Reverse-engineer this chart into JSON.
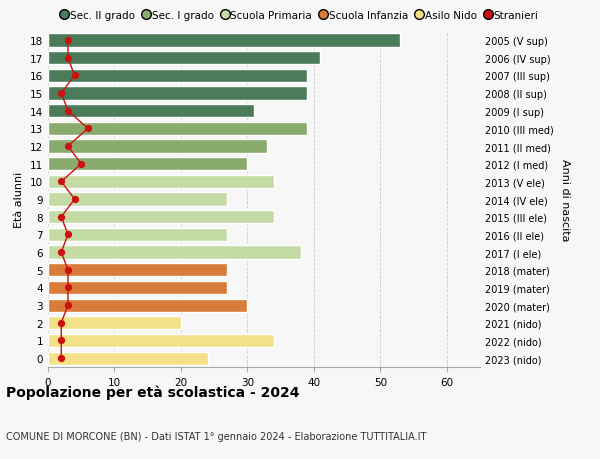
{
  "ages": [
    18,
    17,
    16,
    15,
    14,
    13,
    12,
    11,
    10,
    9,
    8,
    7,
    6,
    5,
    4,
    3,
    2,
    1,
    0
  ],
  "years": [
    "2005 (V sup)",
    "2006 (IV sup)",
    "2007 (III sup)",
    "2008 (II sup)",
    "2009 (I sup)",
    "2010 (III med)",
    "2011 (II med)",
    "2012 (I med)",
    "2013 (V ele)",
    "2014 (IV ele)",
    "2015 (III ele)",
    "2016 (II ele)",
    "2017 (I ele)",
    "2018 (mater)",
    "2019 (mater)",
    "2020 (mater)",
    "2021 (nido)",
    "2022 (nido)",
    "2023 (nido)"
  ],
  "values": [
    53,
    41,
    39,
    39,
    31,
    39,
    33,
    30,
    34,
    27,
    34,
    27,
    38,
    27,
    27,
    30,
    20,
    34,
    24
  ],
  "stranieri": [
    3,
    3,
    4,
    2,
    3,
    6,
    3,
    5,
    2,
    4,
    2,
    3,
    2,
    3,
    3,
    3,
    2,
    2,
    2
  ],
  "bar_colors": [
    "#4a7c59",
    "#4a7c59",
    "#4a7c59",
    "#4a7c59",
    "#4a7c59",
    "#8aab6e",
    "#8aab6e",
    "#8aab6e",
    "#c5dba5",
    "#c5dba5",
    "#c5dba5",
    "#c5dba5",
    "#c5dba5",
    "#d97b3a",
    "#d97b3a",
    "#d97b3a",
    "#f5e08a",
    "#f5e08a",
    "#f5e08a"
  ],
  "legend_labels": [
    "Sec. II grado",
    "Sec. I grado",
    "Scuola Primaria",
    "Scuola Infanzia",
    "Asilo Nido",
    "Stranieri"
  ],
  "legend_colors": [
    "#4a7c59",
    "#8aab6e",
    "#c5dba5",
    "#d97b3a",
    "#f5e08a",
    "#cc1111"
  ],
  "stranieri_color": "#cc1111",
  "title": "Popolazione per età scolastica - 2024",
  "subtitle": "COMUNE DI MORCONE (BN) - Dati ISTAT 1° gennaio 2024 - Elaborazione TUTTITALIA.IT",
  "ylabel_left": "Età alunni",
  "ylabel_right": "Anni di nascita",
  "xlim": [
    0,
    65
  ],
  "xticks": [
    0,
    10,
    20,
    30,
    40,
    50,
    60
  ],
  "background_color": "#f7f7f7",
  "grid_color": "#cccccc"
}
